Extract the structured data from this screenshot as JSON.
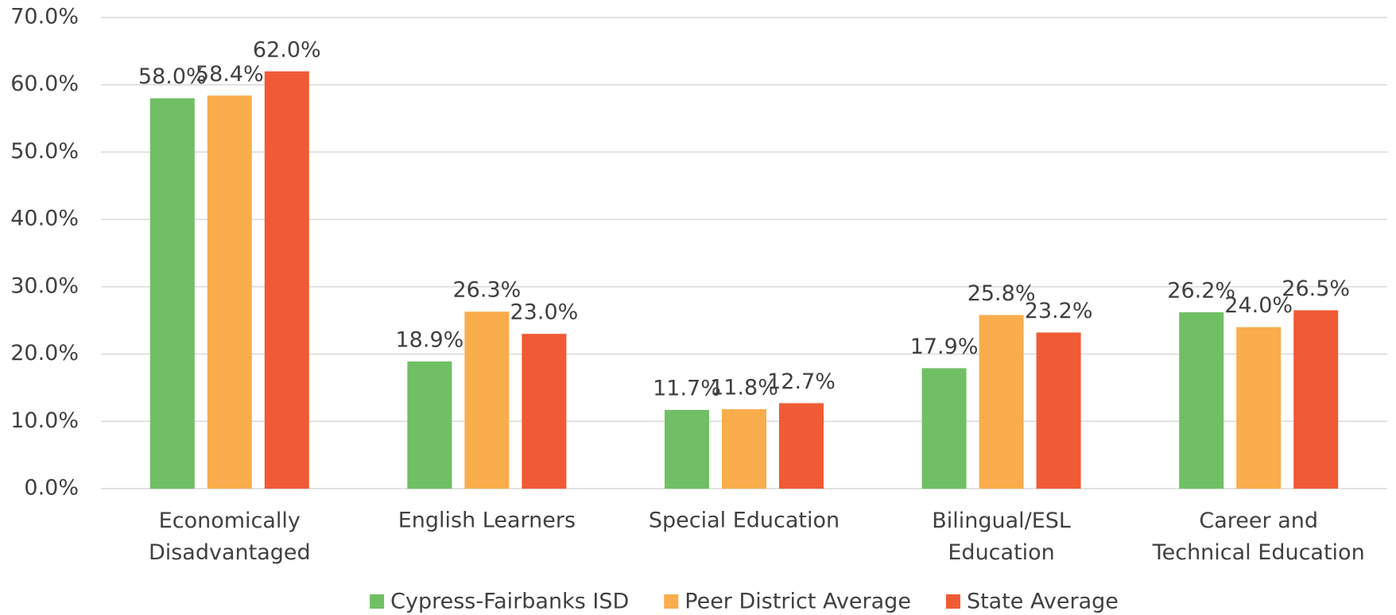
{
  "chart_data": {
    "type": "bar",
    "categories": [
      "Economically\nDisadvantaged",
      "English Learners",
      "Special Education",
      "Bilingual/ESL\nEducation",
      "Career and\nTechnical Education"
    ],
    "series": [
      {
        "name": "Cypress-Fairbanks ISD",
        "color": "#70bf64",
        "values": [
          58.0,
          18.9,
          11.7,
          17.9,
          26.2
        ],
        "value_labels": [
          "58.0%",
          "18.9%",
          "11.7%",
          "17.9%",
          "26.2%"
        ]
      },
      {
        "name": "Peer District Average",
        "color": "#f9ad4c",
        "values": [
          58.4,
          26.3,
          11.8,
          25.8,
          24.0
        ],
        "value_labels": [
          "58.4%",
          "26.3%",
          "11.8%",
          "25.8%",
          "24.0%"
        ]
      },
      {
        "name": "State Average",
        "color": "#f05a35",
        "values": [
          62.0,
          23.0,
          12.7,
          23.2,
          26.5
        ],
        "value_labels": [
          "62.0%",
          "23.0%",
          "12.7%",
          "23.2%",
          "26.5%"
        ]
      }
    ],
    "ylim": [
      0,
      70
    ],
    "yticks": [
      {
        "value": 0,
        "label": "0.0%"
      },
      {
        "value": 10,
        "label": "10.0%"
      },
      {
        "value": 20,
        "label": "20.0%"
      },
      {
        "value": 30,
        "label": "30.0%"
      },
      {
        "value": 40,
        "label": "40.0%"
      },
      {
        "value": 50,
        "label": "50.0%"
      },
      {
        "value": 60,
        "label": "60.0%"
      },
      {
        "value": 70,
        "label": "70.0%"
      }
    ],
    "grid": true,
    "legend": "bottom"
  }
}
